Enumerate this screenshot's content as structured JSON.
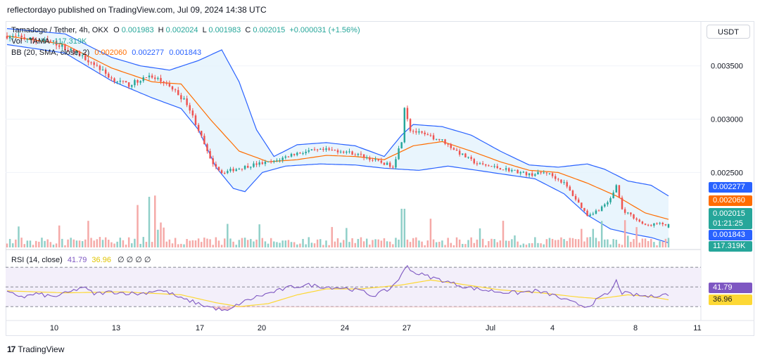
{
  "header": {
    "published": "reflectordayo published on TradingView.com, Jul 09, 2024 14:38 UTC"
  },
  "legend": {
    "symbol": "Tamadoge / Tether, 4h, OKX",
    "o_label": "O",
    "o_value": "0.001983",
    "h_label": "H",
    "h_value": "0.002024",
    "l_label": "L",
    "l_value": "0.001983",
    "c_label": "C",
    "c_value": "0.002015",
    "change": "+0.000031 (+1.56%)",
    "vol_label": "Vol · TAMA",
    "vol_value": "117.319K",
    "bb_label": "BB (20, SMA, close, 2)",
    "bb_basis": "0.002060",
    "bb_upper": "0.002277",
    "bb_lower": "0.001843",
    "rsi_label": "RSI (14, close)",
    "rsi_value": "41.79",
    "rsi_ma": "36.96",
    "rsi_extra": "∅ ∅ ∅ ∅"
  },
  "currency_button": "USDT",
  "price_boxes": {
    "upper": "0.002277",
    "basis": "0.002060",
    "close": "0.002015",
    "countdown": "01:21:25",
    "lower": "0.001843",
    "volume": "117.319K"
  },
  "rsi_boxes": {
    "rsi": "41.79",
    "ma": "36.96"
  },
  "footer": {
    "brand": "TradingView",
    "logo": "17"
  },
  "colors": {
    "up": "#26a69a",
    "down": "#ef5350",
    "bb_band": "#2962ff",
    "bb_basis": "#ff6d00",
    "bb_fill": "#e3f2fd",
    "rsi_line": "#7e57c2",
    "rsi_ma": "#fdd835",
    "rsi_bg": "#f3effa",
    "vol_up": "#8fcfc8",
    "vol_down": "#f5a9a7"
  },
  "chart_data": {
    "type": "candlestick",
    "timeframe": "4h",
    "x_tick_labels": [
      "10",
      "13",
      "17",
      "20",
      "24",
      "27",
      "Jul",
      "4",
      "8",
      "11"
    ],
    "y_tick_labels": [
      "0.003500",
      "0.003000",
      "0.002500"
    ],
    "ylim": [
      0.00181,
      0.00392
    ],
    "rsi_ticks": [
      "50.00"
    ],
    "rsi_levels": [
      70,
      30
    ],
    "rsi_ylim": [
      18,
      78
    ],
    "price_anchors": [
      [
        0,
        0.00378
      ],
      [
        8,
        0.00375
      ],
      [
        16,
        0.00372
      ],
      [
        24,
        0.00362
      ],
      [
        30,
        0.00352
      ],
      [
        36,
        0.00338
      ],
      [
        42,
        0.00332
      ],
      [
        48,
        0.0034
      ],
      [
        54,
        0.00335
      ],
      [
        58,
        0.00326
      ],
      [
        62,
        0.00315
      ],
      [
        66,
        0.0029
      ],
      [
        70,
        0.00262
      ],
      [
        74,
        0.0025
      ],
      [
        80,
        0.00254
      ],
      [
        86,
        0.00258
      ],
      [
        92,
        0.0026
      ],
      [
        98,
        0.00267
      ],
      [
        104,
        0.0027
      ],
      [
        110,
        0.00271
      ],
      [
        116,
        0.0027
      ],
      [
        122,
        0.00266
      ],
      [
        128,
        0.0026
      ],
      [
        133,
        0.00256
      ],
      [
        136,
        0.0028
      ],
      [
        137,
        0.00312
      ],
      [
        139,
        0.0029
      ],
      [
        144,
        0.00285
      ],
      [
        150,
        0.0028
      ],
      [
        156,
        0.00268
      ],
      [
        162,
        0.00258
      ],
      [
        168,
        0.00255
      ],
      [
        174,
        0.00252
      ],
      [
        180,
        0.00248
      ],
      [
        186,
        0.0025
      ],
      [
        192,
        0.0024
      ],
      [
        196,
        0.00225
      ],
      [
        200,
        0.0021
      ],
      [
        204,
        0.00215
      ],
      [
        208,
        0.00225
      ],
      [
        210,
        0.00238
      ],
      [
        212,
        0.00215
      ],
      [
        216,
        0.00208
      ],
      [
        220,
        0.002
      ],
      [
        224,
        0.00202
      ],
      [
        228,
        0.00201
      ]
    ],
    "bb_upper_anchors": [
      [
        0,
        0.00385
      ],
      [
        20,
        0.0038
      ],
      [
        36,
        0.00358
      ],
      [
        46,
        0.0035
      ],
      [
        56,
        0.00346
      ],
      [
        66,
        0.00355
      ],
      [
        74,
        0.00365
      ],
      [
        80,
        0.00335
      ],
      [
        86,
        0.0029
      ],
      [
        92,
        0.00265
      ],
      [
        100,
        0.00276
      ],
      [
        110,
        0.00278
      ],
      [
        120,
        0.00275
      ],
      [
        130,
        0.00265
      ],
      [
        136,
        0.00285
      ],
      [
        140,
        0.00295
      ],
      [
        150,
        0.00293
      ],
      [
        160,
        0.00285
      ],
      [
        170,
        0.0027
      ],
      [
        180,
        0.00257
      ],
      [
        190,
        0.00255
      ],
      [
        200,
        0.00258
      ],
      [
        206,
        0.00253
      ],
      [
        214,
        0.00242
      ],
      [
        222,
        0.00238
      ],
      [
        228,
        0.00228
      ]
    ],
    "bb_basis_anchors": [
      [
        0,
        0.00378
      ],
      [
        20,
        0.0037
      ],
      [
        36,
        0.00348
      ],
      [
        50,
        0.00335
      ],
      [
        60,
        0.00333
      ],
      [
        70,
        0.003
      ],
      [
        80,
        0.0027
      ],
      [
        90,
        0.0026
      ],
      [
        100,
        0.00262
      ],
      [
        110,
        0.00266
      ],
      [
        120,
        0.00265
      ],
      [
        130,
        0.00262
      ],
      [
        140,
        0.00275
      ],
      [
        150,
        0.00279
      ],
      [
        160,
        0.0027
      ],
      [
        170,
        0.0026
      ],
      [
        180,
        0.00252
      ],
      [
        190,
        0.0025
      ],
      [
        200,
        0.0024
      ],
      [
        210,
        0.00228
      ],
      [
        220,
        0.00212
      ],
      [
        228,
        0.00206
      ]
    ],
    "bb_lower_anchors": [
      [
        0,
        0.0037
      ],
      [
        20,
        0.00362
      ],
      [
        36,
        0.00336
      ],
      [
        50,
        0.0032
      ],
      [
        60,
        0.0031
      ],
      [
        66,
        0.0029
      ],
      [
        72,
        0.00255
      ],
      [
        78,
        0.00235
      ],
      [
        82,
        0.00232
      ],
      [
        88,
        0.0025
      ],
      [
        96,
        0.00256
      ],
      [
        108,
        0.00258
      ],
      [
        120,
        0.00257
      ],
      [
        130,
        0.00254
      ],
      [
        136,
        0.00253
      ],
      [
        142,
        0.00252
      ],
      [
        152,
        0.00256
      ],
      [
        162,
        0.00252
      ],
      [
        172,
        0.00248
      ],
      [
        182,
        0.00244
      ],
      [
        192,
        0.0023
      ],
      [
        200,
        0.0021
      ],
      [
        208,
        0.00197
      ],
      [
        216,
        0.00192
      ],
      [
        222,
        0.00189
      ],
      [
        228,
        0.00184
      ]
    ],
    "rsi_anchors": [
      [
        0,
        44
      ],
      [
        6,
        40
      ],
      [
        10,
        43
      ],
      [
        16,
        40
      ],
      [
        22,
        45
      ],
      [
        26,
        50
      ],
      [
        30,
        43
      ],
      [
        36,
        45
      ],
      [
        40,
        44
      ],
      [
        46,
        43
      ],
      [
        52,
        47
      ],
      [
        56,
        44
      ],
      [
        60,
        38
      ],
      [
        64,
        35
      ],
      [
        68,
        31
      ],
      [
        72,
        28
      ],
      [
        76,
        25
      ],
      [
        80,
        33
      ],
      [
        86,
        40
      ],
      [
        92,
        45
      ],
      [
        98,
        50
      ],
      [
        104,
        52
      ],
      [
        110,
        50
      ],
      [
        116,
        49
      ],
      [
        122,
        46
      ],
      [
        126,
        41
      ],
      [
        132,
        48
      ],
      [
        136,
        62
      ],
      [
        138,
        72
      ],
      [
        140,
        65
      ],
      [
        146,
        60
      ],
      [
        152,
        55
      ],
      [
        158,
        50
      ],
      [
        164,
        47
      ],
      [
        170,
        45
      ],
      [
        176,
        44
      ],
      [
        182,
        46
      ],
      [
        188,
        42
      ],
      [
        192,
        37
      ],
      [
        196,
        33
      ],
      [
        200,
        30
      ],
      [
        204,
        38
      ],
      [
        208,
        45
      ],
      [
        210,
        56
      ],
      [
        212,
        44
      ],
      [
        216,
        42
      ],
      [
        222,
        40
      ],
      [
        226,
        43
      ],
      [
        228,
        41.79
      ]
    ],
    "rsi_ma_anchors": [
      [
        0,
        46
      ],
      [
        20,
        44
      ],
      [
        40,
        45
      ],
      [
        60,
        42
      ],
      [
        72,
        34
      ],
      [
        80,
        30
      ],
      [
        90,
        33
      ],
      [
        100,
        42
      ],
      [
        110,
        48
      ],
      [
        122,
        48
      ],
      [
        136,
        52
      ],
      [
        146,
        57
      ],
      [
        156,
        53
      ],
      [
        170,
        47
      ],
      [
        184,
        44
      ],
      [
        196,
        40
      ],
      [
        204,
        38
      ],
      [
        214,
        42
      ],
      [
        222,
        40
      ],
      [
        228,
        36.96
      ]
    ]
  }
}
